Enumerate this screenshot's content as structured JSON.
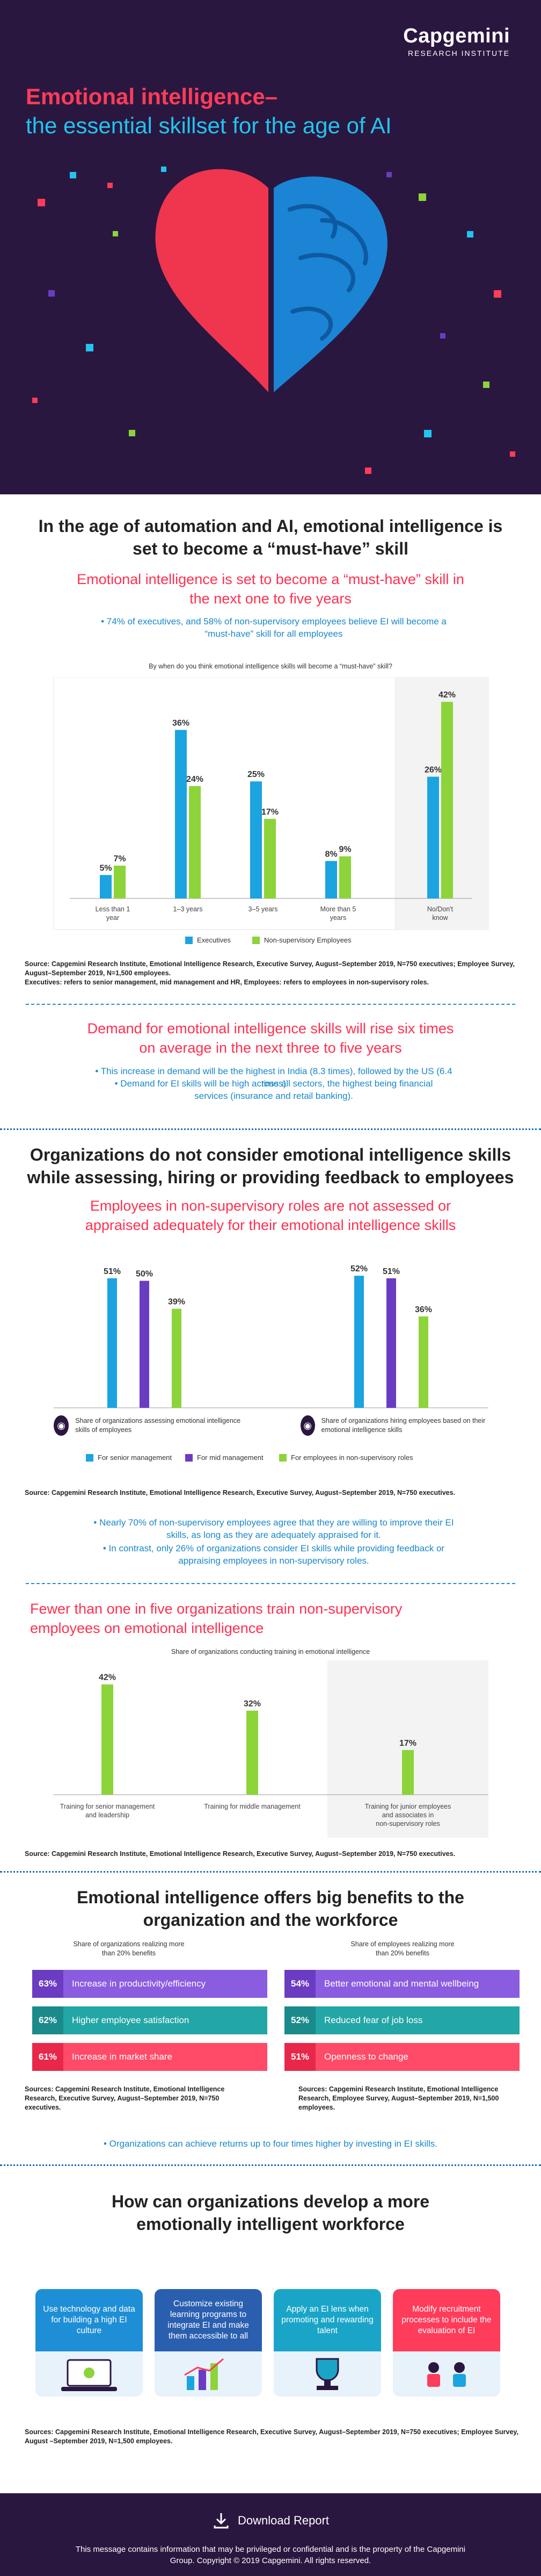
{
  "brand": {
    "name": "Capgemini",
    "sub": "RESEARCH INSTITUTE"
  },
  "hero": {
    "title_line1": "Emotional intelligence–",
    "title_line2": "the essential skillset for the age of AI"
  },
  "s1": {
    "heading": "In the age of automation and AI, emotional intelligence is set to become a “must-have” skill",
    "subheading": "Emotional intelligence is set to become a “must-have” skill in the next one to five years",
    "bullet": "• 74% of executives, and 58% of non-supervisory employees believe EI will become a “must-have” skill for all employees",
    "chart_question": "By when do you think emotional intelligence skills will become a “must-have” skill?",
    "legend_exec": "Executives",
    "legend_emp": "Non-supervisory Employees",
    "source": "Source: Capgemini Research Institute, Emotional Intelligence Research, Executive Survey, August–September 2019, N=750 executives; Employee Survey, August–September 2019, N=1,500 employees.",
    "source2": "Executives: refers to senior management, mid management and HR, Employees: refers to employees in non-supervisory roles.",
    "demand_heading": "Demand for emotional intelligence skills will rise six times on average in the next three to five years",
    "demand_b1": "• This increase in demand will be the highest in India (8.3 times), followed by the US (6.4 times)",
    "demand_b2": "• Demand for EI skills will be high across all sectors, the highest being financial services (insurance and retail banking)."
  },
  "s2": {
    "heading": "Organizations do not consider emotional intelligence skills while assessing, hiring or providing feedback to employees",
    "subheading": "Employees in non-supervisory roles are not assessed or appraised adequately for their emotional intelligence skills",
    "group1_label": "Share of organizations assessing emotional intelligence skills of employees",
    "group2_label": "Share of organizations hiring employees based on their emotional intelligence skills",
    "legend_senior": "For senior management",
    "legend_mid": "For mid management",
    "legend_nonsup": "For employees in non-supervisory roles",
    "source": "Source: Capgemini Research Institute, Emotional Intelligence Research, Executive Survey, August–September 2019, N=750 executives.",
    "b1": "• Nearly 70% of non-supervisory employees agree that they are willing to improve their EI skills, as long as they are adequately appraised for it.",
    "b2": "• In contrast, only 26% of organizations consider EI skills while providing feedback or appraising employees in non-supervisory roles.",
    "training_heading": "Fewer than one in five organizations train non-supervisory employees on emotional intelligence",
    "training_caption": "Share of organizations conducting training in emotional intelligence",
    "training_source": "Source: Capgemini Research Institute, Emotional Intelligence Research, Executive Survey, August–September 2019, N=750 executives."
  },
  "s3": {
    "heading": "Emotional intelligence offers big benefits to the organization and the workforce",
    "org_caption": "Share of organizations realizing more than 20% benefits",
    "emp_caption": "Share of employees realizing more than 20% benefits",
    "org_items": [
      {
        "pct": "63%",
        "label": "Increase in productivity/efficiency"
      },
      {
        "pct": "62%",
        "label": "Higher employee satisfaction"
      },
      {
        "pct": "61%",
        "label": "Increase in market share"
      }
    ],
    "emp_items": [
      {
        "pct": "54%",
        "label": "Better emotional and mental wellbeing"
      },
      {
        "pct": "52%",
        "label": "Reduced fear of job loss"
      },
      {
        "pct": "51%",
        "label": "Openness to change"
      }
    ],
    "org_source": "Sources: Capgemini Research Institute, Emotional Intelligence Research, Executive Survey, August–September 2019, N=750 executives.",
    "emp_source": "Sources: Capgemini Research Institute, Emotional Intelligence Research, Employee Survey, August–September 2019, N=1,500 employees.",
    "returns": "• Organizations can achieve returns up to four times higher by investing in EI skills."
  },
  "s4": {
    "heading": "How can organizations develop a more emotionally intelligent workforce",
    "cards": [
      {
        "text": "Use technology and data for building a high EI culture",
        "color": "#1e8fd6"
      },
      {
        "text": "Customize existing learning programs to integrate EI and make them accessible to all",
        "color": "#2a5fb0"
      },
      {
        "text": "Apply an EI lens when promoting and rewarding talent",
        "color": "#1aa5c8"
      },
      {
        "text": "Modify recruitment processes to include the evaluation of EI",
        "color": "#ff3c5a"
      }
    ],
    "source": "Sources: Capgemini Research Institute, Emotional Intelligence Research, Executive Survey, August–September 2019, N=750 executives; Employee Survey, August –September 2019, N=1,500 employees."
  },
  "footer": {
    "download": "Download Report",
    "disclaimer": "This message contains information that may be privileged or confidential and is the property of the Capgemini Group. Copyright © 2019 Capgemini. All rights reserved."
  },
  "chart_data": [
    {
      "type": "bar",
      "categories": [
        "Less than 1 year",
        "1–3 years",
        "3–5 years",
        "More than 5 years",
        "No/Don't know"
      ],
      "series": [
        {
          "name": "Executives",
          "values": [
            5,
            36,
            25,
            8,
            26
          ]
        },
        {
          "name": "Non-supervisory Employees",
          "values": [
            7,
            24,
            17,
            9,
            42
          ]
        }
      ],
      "colors": [
        "#1ba4e0",
        "#8cd43a"
      ],
      "ylim": [
        0,
        45
      ]
    },
    {
      "type": "bar",
      "categories": [
        "Share of organizations assessing emotional intelligence skills of employees",
        "Share of organizations hiring employees based on their emotional intelligence skills"
      ],
      "series": [
        {
          "name": "For senior management",
          "values": [
            51,
            52
          ]
        },
        {
          "name": "For mid management",
          "values": [
            50,
            51
          ]
        },
        {
          "name": "For employees in non-supervisory roles",
          "values": [
            39,
            36
          ]
        }
      ],
      "colors": [
        "#1ba4e0",
        "#6a3cc2",
        "#8cd43a"
      ],
      "ylim": [
        0,
        55
      ]
    },
    {
      "type": "bar",
      "categories": [
        "Training for senior management and leadership",
        "Training for middle management",
        "Training for junior employees and associates in non-supervisory roles"
      ],
      "values": [
        42,
        32,
        17
      ],
      "color": "#8cd43a",
      "ylim": [
        0,
        45
      ]
    }
  ]
}
